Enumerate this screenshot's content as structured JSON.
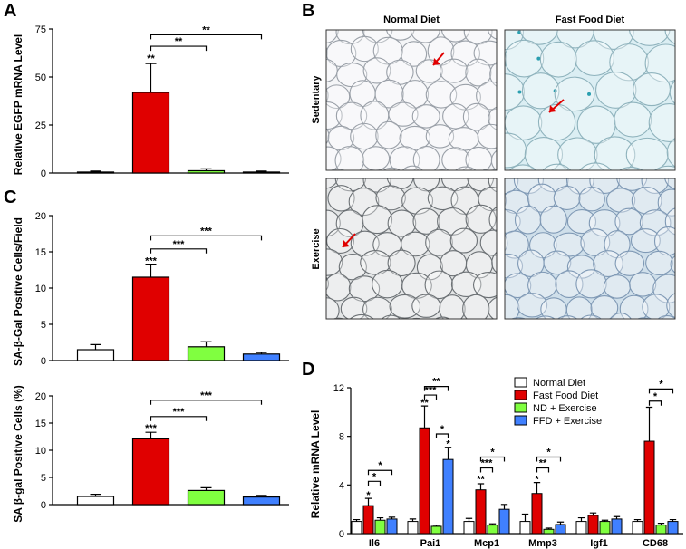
{
  "panel_labels": [
    "A",
    "B",
    "C",
    "D"
  ],
  "panel_b": {
    "columns": [
      "Normal Diet",
      "Fast Food Diet"
    ],
    "rows": [
      "Sedentary",
      "Exercise"
    ]
  },
  "chart_data": [
    {
      "type": "bar",
      "y_label": "Relative EGFP mRNA Level",
      "categories": [
        null,
        null,
        null,
        null
      ],
      "values": [
        0.5,
        42,
        1.2,
        0.5
      ],
      "errors": [
        0.5,
        15,
        1,
        0.5
      ],
      "colors": [
        "#ffffff",
        "#e00000",
        "#80ff40",
        "#4080ff"
      ],
      "ylim": [
        0,
        75
      ],
      "yticks": [
        0,
        25,
        50,
        75
      ],
      "annotations": [
        "**",
        "**",
        "**"
      ]
    },
    {
      "type": "bar",
      "y_label": "SA-β-Gal Positive Cells/Field",
      "categories": [
        null,
        null,
        null,
        null
      ],
      "values": [
        1.5,
        11.5,
        1.9,
        0.9
      ],
      "errors": [
        0.7,
        1.8,
        0.7,
        0.2
      ],
      "colors": [
        "#ffffff",
        "#e00000",
        "#80ff40",
        "#4080ff"
      ],
      "ylim": [
        0,
        20
      ],
      "yticks": [
        0,
        5,
        10,
        15,
        20
      ],
      "annotations": [
        "***",
        "***",
        "***"
      ]
    },
    {
      "type": "bar",
      "y_label": "SA β-gal Positive Cells (%)",
      "categories": [
        null,
        null,
        null,
        null
      ],
      "values": [
        1.5,
        12.1,
        2.6,
        1.4
      ],
      "errors": [
        0.4,
        1.2,
        0.5,
        0.3
      ],
      "colors": [
        "#ffffff",
        "#e00000",
        "#80ff40",
        "#4080ff"
      ],
      "ylim": [
        0,
        20
      ],
      "yticks": [
        0,
        5,
        10,
        15,
        20
      ],
      "annotations": [
        "***",
        "***",
        "***"
      ]
    },
    {
      "type": "grouped-bar",
      "y_label": "Relative mRNA Level",
      "categories": [
        "Il6",
        "Pai1",
        "Mcp1",
        "Mmp3",
        "Igf1",
        "CD68"
      ],
      "series": [
        {
          "name": "Normal Diet",
          "color": "#ffffff",
          "values": [
            1,
            1,
            1,
            1,
            1,
            1
          ],
          "errors": [
            0.15,
            0.2,
            0.25,
            0.6,
            0.3,
            0.15
          ]
        },
        {
          "name": "Fast Food Diet",
          "color": "#e00000",
          "values": [
            2.3,
            8.7,
            3.6,
            3.3,
            1.5,
            7.6
          ],
          "errors": [
            0.6,
            1.8,
            0.5,
            0.9,
            0.2,
            2.8
          ]
        },
        {
          "name": "ND + Exercise",
          "color": "#80ff40",
          "values": [
            1.1,
            0.6,
            0.7,
            0.35,
            1.0,
            0.7
          ],
          "errors": [
            0.2,
            0.1,
            0.1,
            0.1,
            0.1,
            0.15
          ]
        },
        {
          "name": "FFD + Exercise",
          "color": "#4080ff",
          "values": [
            1.2,
            6.1,
            2.0,
            0.75,
            1.2,
            1.0
          ],
          "errors": [
            0.15,
            1.0,
            0.4,
            0.2,
            0.2,
            0.15
          ]
        }
      ],
      "ylim": [
        0,
        12
      ],
      "yticks": [
        0,
        4,
        8,
        12
      ],
      "annotations": [
        "*",
        "*",
        "*",
        "**",
        "***",
        "**",
        "*",
        "*",
        "**",
        "***",
        "*",
        "*",
        "**",
        "*",
        "*",
        "*"
      ]
    }
  ]
}
